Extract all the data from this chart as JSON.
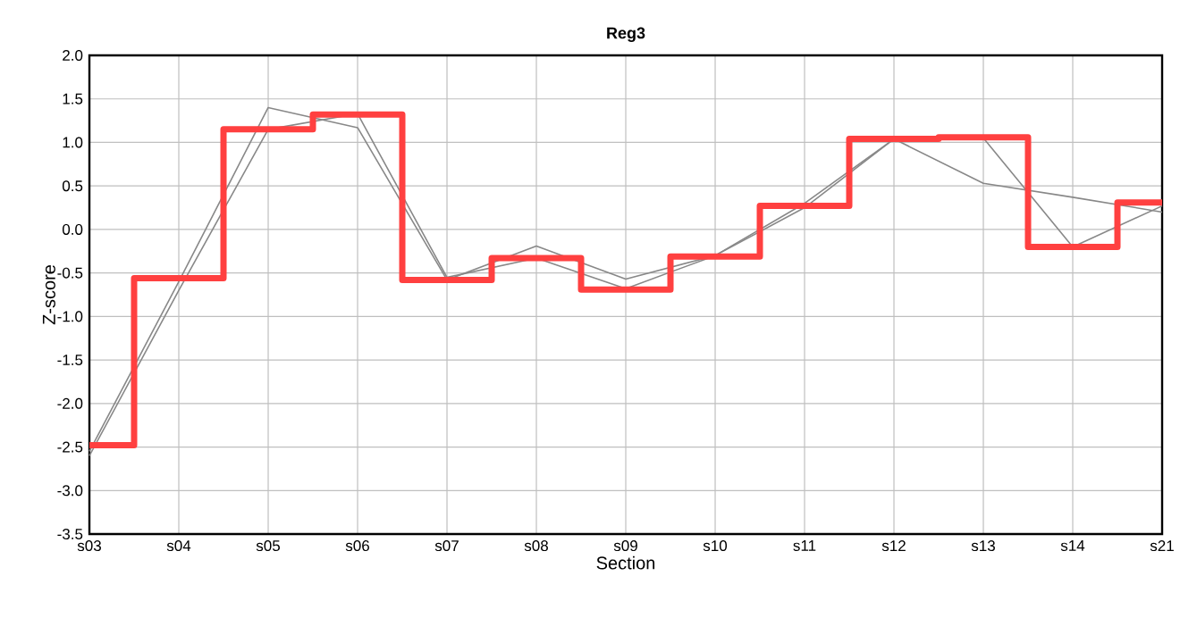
{
  "chart_data": {
    "type": "line",
    "title": "Reg3",
    "xlabel": "Section",
    "ylabel": "Z-score",
    "categories": [
      "s03",
      "s04",
      "s05",
      "s06",
      "s07",
      "s08",
      "s09",
      "s10",
      "s11",
      "s12",
      "s13",
      "s14",
      "s21"
    ],
    "series": [
      {
        "color": "#888888",
        "values": [
          -2.55,
          -0.6,
          1.4,
          1.17,
          -0.58,
          -0.19,
          -0.57,
          -0.3,
          0.3,
          1.04,
          0.53,
          0.37,
          0.2
        ]
      },
      {
        "color": "#888888",
        "values": [
          -2.6,
          -0.7,
          1.15,
          1.33,
          -0.55,
          -0.33,
          -0.68,
          -0.3,
          0.25,
          1.04,
          1.05,
          -0.2,
          0.27
        ]
      },
      {
        "type": "step",
        "color": "#ff4040",
        "values": [
          -2.48,
          -0.56,
          1.15,
          1.32,
          -0.58,
          -0.33,
          -0.69,
          -0.31,
          0.27,
          1.04,
          1.06,
          -0.2,
          0.31
        ]
      }
    ],
    "ylim": [
      -3.5,
      2.0
    ],
    "yticks": [
      {
        "value": -3.5,
        "label": "-3.5"
      },
      {
        "value": -3.0,
        "label": "-3.0"
      },
      {
        "value": -2.5,
        "label": "-2.5"
      },
      {
        "value": -2.0,
        "label": "-2.0"
      },
      {
        "value": -1.5,
        "label": "-1.5"
      },
      {
        "value": -1.0,
        "label": "-1.0"
      },
      {
        "value": -0.5,
        "label": "-0.5"
      },
      {
        "value": 0.0,
        "label": "0.0"
      },
      {
        "value": 0.5,
        "label": "0.5"
      },
      {
        "value": 1.0,
        "label": "1.0"
      },
      {
        "value": 1.5,
        "label": "1.5"
      },
      {
        "value": 2.0,
        "label": "2.0"
      }
    ],
    "grid": true,
    "marker": "none",
    "line_style": "solid"
  }
}
